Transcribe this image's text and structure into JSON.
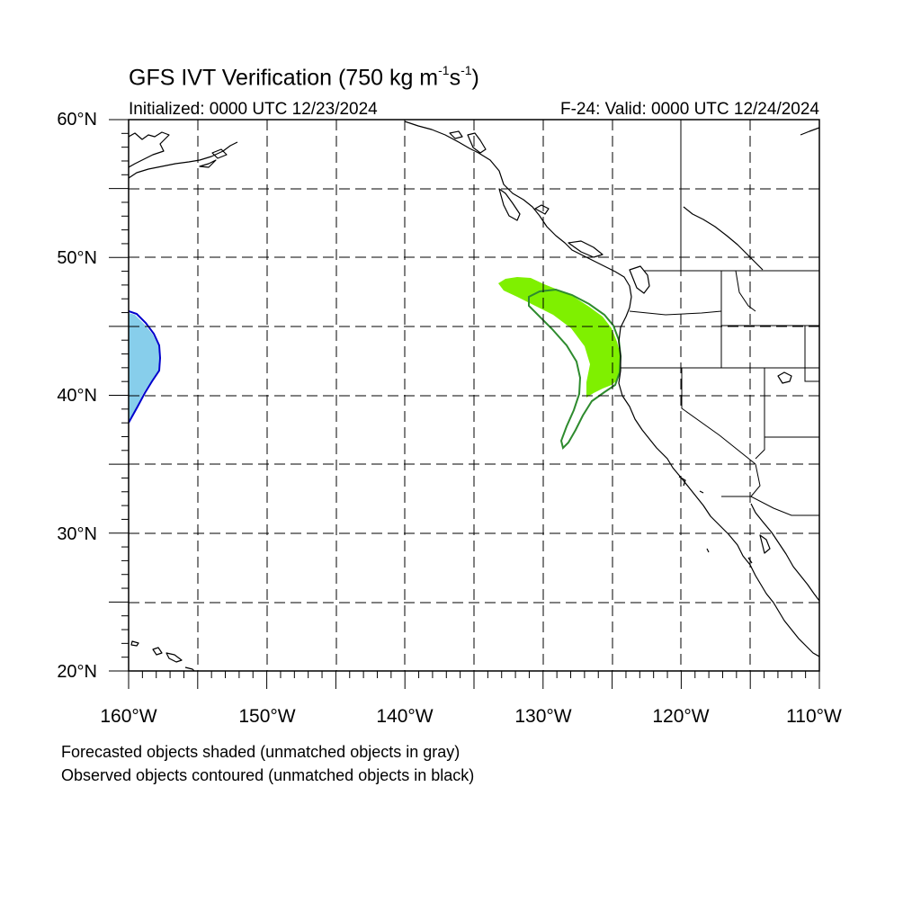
{
  "title_main": "GFS IVT Verification (750 kg m",
  "title_exp1": "-1",
  "title_mid": "s",
  "title_exp2": "-1",
  "title_end": ")",
  "initialized": "Initialized: 0000 UTC 12/23/2024",
  "valid": "F-24: Valid: 0000 UTC 12/24/2024",
  "lat_labels": [
    "60°N",
    "50°N",
    "40°N",
    "30°N",
    "20°N"
  ],
  "lon_labels": [
    "160°W",
    "150°W",
    "140°W",
    "130°W",
    "120°W",
    "110°W"
  ],
  "notes": [
    "Forecasted objects shaded (unmatched objects in gray)",
    "Observed objects contoured (unmatched objects in black)"
  ],
  "colors": {
    "forecast_matched_1": "#7ff000",
    "observed_matched_1": "#2e8b2e",
    "forecast_matched_2": "#87ceeb",
    "observed_matched_2": "#0000cd"
  },
  "map_extent": {
    "lon_min": -160,
    "lon_max": -110,
    "lat_min": 20,
    "lat_max": 60
  }
}
